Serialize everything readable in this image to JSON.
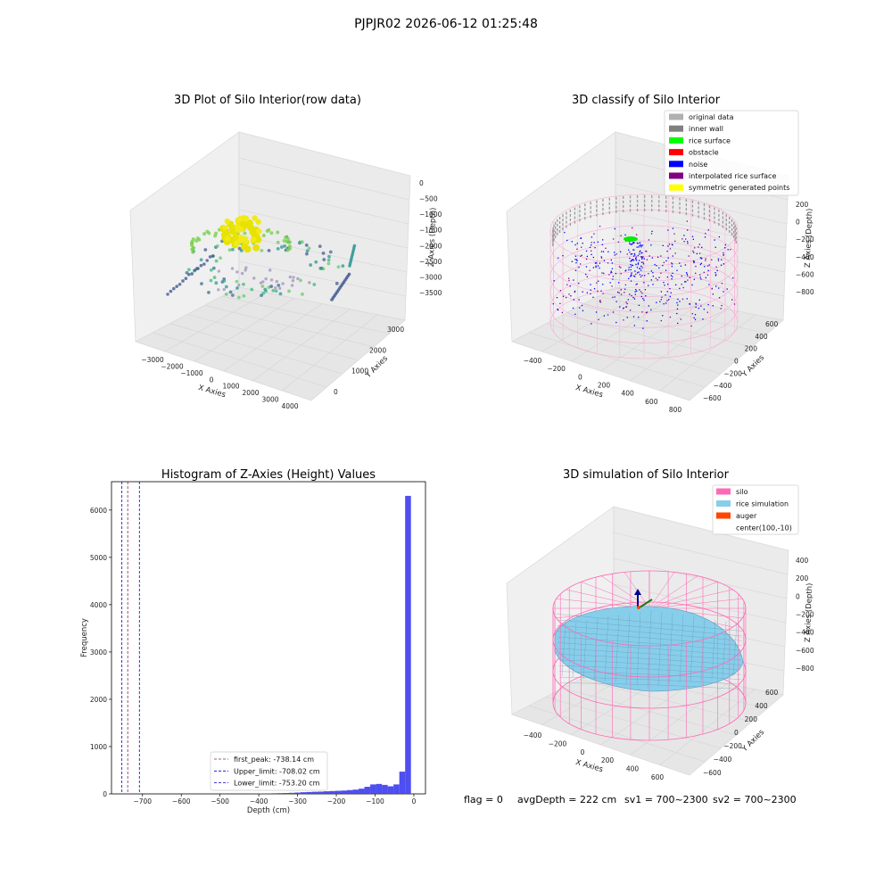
{
  "figure": {
    "suptitle": "PJPJR02 2026-06-12 01:25:48",
    "footer": {
      "flag": "flag = 0",
      "avg_depth": "avgDepth = 222 cm",
      "sv1": "sv1 = 700~2300",
      "sv2": "sv2 = 700~2300"
    }
  },
  "panels": {
    "raw": {
      "title": "3D Plot of Silo Interior(row data)",
      "xlabel": "X Axies",
      "ylabel": "Y Axies",
      "zlabel": "Z Axies (Depth)",
      "xticks": [
        "−3000",
        "−2000",
        "−1000",
        "0",
        "1000",
        "2000",
        "3000",
        "4000"
      ],
      "yticks": [
        "0",
        "1000",
        "2000",
        "3000"
      ],
      "zticks": [
        "0",
        "−500",
        "−1000",
        "−1500",
        "−2000",
        "−2500",
        "−3000",
        "−3500"
      ]
    },
    "classify": {
      "title": "3D classify of Silo Interior",
      "xlabel": "X Axies",
      "ylabel": "Y Axies",
      "zlabel": "Z Axies (Depth)",
      "xticks": [
        "−400",
        "−200",
        "0",
        "200",
        "400",
        "600",
        "800"
      ],
      "yticks": [
        "−600",
        "−400",
        "−200",
        "0",
        "200",
        "400",
        "600"
      ],
      "zticks": [
        "200",
        "0",
        "−200",
        "−400",
        "−600",
        "−800"
      ],
      "legend": [
        {
          "label": "original data",
          "color": "#b0b0b0"
        },
        {
          "label": "inner wall",
          "color": "#808080"
        },
        {
          "label": "rice surface",
          "color": "#00ff00"
        },
        {
          "label": "obstacle",
          "color": "#ff0000"
        },
        {
          "label": "noise",
          "color": "#0000ff"
        },
        {
          "label": "interpolated rice surface",
          "color": "#800080"
        },
        {
          "label": "symmetric generated points",
          "color": "#ffff00"
        }
      ]
    },
    "simulation": {
      "title": "3D simulation of Silo Interior",
      "xlabel": "X Axies",
      "ylabel": "Y Axies",
      "zlabel": "Z Axies (Depth)",
      "xticks": [
        "−400",
        "−200",
        "0",
        "200",
        "400",
        "600"
      ],
      "yticks": [
        "−600",
        "−400",
        "−200",
        "0",
        "200",
        "400",
        "600"
      ],
      "zticks": [
        "400",
        "200",
        "0",
        "−200",
        "−400",
        "−600",
        "−800"
      ],
      "legend": [
        {
          "label": "silo",
          "color": "#ff69b4"
        },
        {
          "label": "rice simulation",
          "color": "#87ceeb"
        },
        {
          "label": "auger",
          "color": "#ff4500"
        },
        {
          "label": "center(100,-10)",
          "color": ""
        }
      ]
    }
  },
  "chart_data": [
    {
      "type": "scatter",
      "title": "3D Plot of Silo Interior(row data)",
      "xlabel": "X Axies",
      "ylabel": "Y Axies",
      "zlabel": "Z Axies (Depth)",
      "xlim": [
        -3500,
        4500
      ],
      "ylim": [
        -500,
        3500
      ],
      "zlim": [
        -3700,
        100
      ]
    },
    {
      "type": "scatter",
      "title": "3D classify of Silo Interior",
      "xlabel": "X Axies",
      "ylabel": "Y Axies",
      "zlabel": "Z Axies (Depth)",
      "xlim": [
        -500,
        800
      ],
      "ylim": [
        -650,
        650
      ],
      "zlim": [
        -900,
        250
      ]
    },
    {
      "type": "bar",
      "title": "Histogram of Z-Axies (Height) Values",
      "xlabel": "Depth (cm)",
      "ylabel": "Frequency",
      "xlim": [
        -780,
        30
      ],
      "ylim": [
        0,
        6600
      ],
      "xticks": [
        -700,
        -600,
        -500,
        -400,
        -300,
        -200,
        -100,
        0
      ],
      "yticks": [
        0,
        1000,
        2000,
        3000,
        4000,
        5000,
        6000
      ],
      "bin_width": 15,
      "bins": [
        {
          "x": -405,
          "count": 5
        },
        {
          "x": -390,
          "count": 8
        },
        {
          "x": -375,
          "count": 10
        },
        {
          "x": -360,
          "count": 12
        },
        {
          "x": -345,
          "count": 15
        },
        {
          "x": -330,
          "count": 18
        },
        {
          "x": -315,
          "count": 22
        },
        {
          "x": -300,
          "count": 28
        },
        {
          "x": -285,
          "count": 35
        },
        {
          "x": -270,
          "count": 40
        },
        {
          "x": -255,
          "count": 45
        },
        {
          "x": -240,
          "count": 48
        },
        {
          "x": -225,
          "count": 55
        },
        {
          "x": -210,
          "count": 60
        },
        {
          "x": -195,
          "count": 65
        },
        {
          "x": -180,
          "count": 70
        },
        {
          "x": -165,
          "count": 80
        },
        {
          "x": -150,
          "count": 90
        },
        {
          "x": -135,
          "count": 110
        },
        {
          "x": -120,
          "count": 150
        },
        {
          "x": -105,
          "count": 200
        },
        {
          "x": -90,
          "count": 210
        },
        {
          "x": -75,
          "count": 190
        },
        {
          "x": -60,
          "count": 160
        },
        {
          "x": -45,
          "count": 200
        },
        {
          "x": -30,
          "count": 470
        },
        {
          "x": -15,
          "count": 6300
        }
      ],
      "lines": [
        {
          "label": "first_peak: -738.14 cm",
          "x": -738.14,
          "color": "#8b2252"
        },
        {
          "label": "Upper_limit: -708.02 cm",
          "x": -708.02,
          "color": "#0000cc"
        },
        {
          "label": "Lower_limit: -753.20 cm",
          "x": -753.2,
          "color": "#0000cc"
        }
      ]
    },
    {
      "type": "area",
      "title": "3D simulation of Silo Interior",
      "xlabel": "X Axies",
      "ylabel": "Y Axies",
      "zlabel": "Z Axies (Depth)",
      "xlim": [
        -500,
        700
      ],
      "ylim": [
        -650,
        650
      ],
      "zlim": [
        -900,
        450
      ]
    }
  ]
}
